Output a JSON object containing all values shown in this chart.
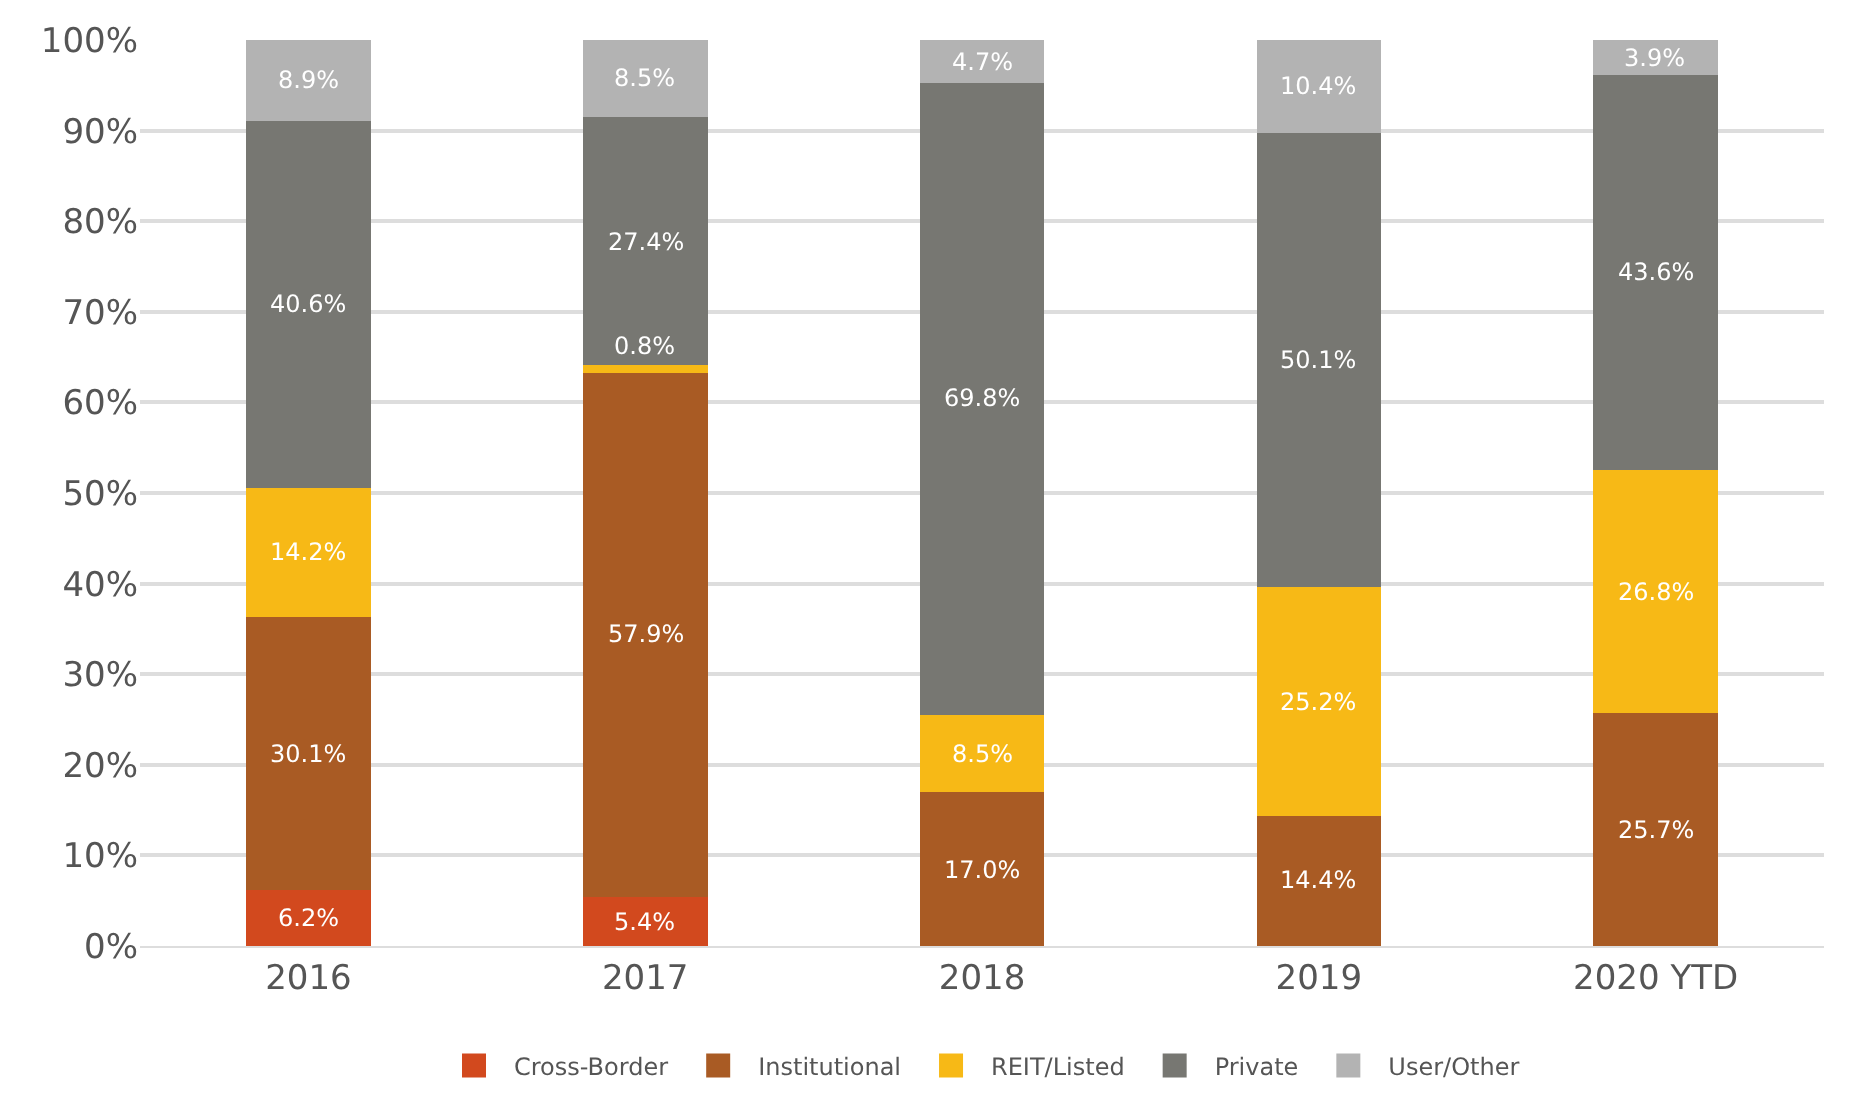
{
  "chart_data": {
    "type": "bar",
    "stacked": true,
    "categories": [
      "2016",
      "2017",
      "2018",
      "2019",
      "2020 YTD"
    ],
    "series": [
      {
        "name": "Cross-Border",
        "color": "#d2491e",
        "values": [
          6.2,
          5.4,
          null,
          null,
          null
        ],
        "value_labels": [
          "6.2%",
          "5.4%",
          null,
          null,
          null
        ]
      },
      {
        "name": "Institutional",
        "color": "#a95b24",
        "values": [
          30.1,
          57.9,
          17.0,
          14.4,
          25.7
        ],
        "value_labels": [
          "30.1%",
          "57.9%",
          "17.0%",
          "14.4%",
          "25.7%"
        ]
      },
      {
        "name": "REIT/Listed",
        "color": "#f7b916",
        "values": [
          14.2,
          0.8,
          8.5,
          25.2,
          26.8
        ],
        "value_labels": [
          "14.2%",
          "0.8%",
          "8.5%",
          "25.2%",
          "26.8%"
        ]
      },
      {
        "name": "Private",
        "color": "#777772",
        "values": [
          40.6,
          27.4,
          69.8,
          50.1,
          43.6
        ],
        "value_labels": [
          "40.6%",
          "27.4%",
          "69.8%",
          "50.1%",
          "43.6%"
        ]
      },
      {
        "name": "User/Other",
        "color": "#b3b3b3",
        "values": [
          8.9,
          8.5,
          4.7,
          10.4,
          3.9
        ],
        "value_labels": [
          "8.9%",
          "8.5%",
          "4.7%",
          "10.4%",
          "3.9%"
        ]
      }
    ],
    "ylim": [
      0,
      100
    ],
    "yticks": [
      {
        "value": 0,
        "label": "0%"
      },
      {
        "value": 10,
        "label": "10%"
      },
      {
        "value": 20,
        "label": "20%"
      },
      {
        "value": 30,
        "label": "30%"
      },
      {
        "value": 40,
        "label": "40%"
      },
      {
        "value": 50,
        "label": "50%"
      },
      {
        "value": 60,
        "label": "60%"
      },
      {
        "value": 70,
        "label": "70%"
      },
      {
        "value": 80,
        "label": "80%"
      },
      {
        "value": 90,
        "label": "90%"
      },
      {
        "value": 100,
        "label": "100%"
      }
    ],
    "grid": "y",
    "legend": "bottom"
  }
}
